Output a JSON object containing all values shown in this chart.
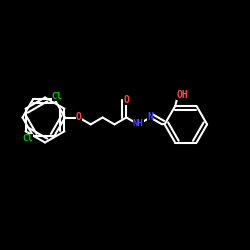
{
  "background_color": "#000000",
  "bond_color": "#ffffff",
  "atom_colors": {
    "O": "#ff4444",
    "N": "#4444ff",
    "Cl": "#00cc00",
    "H": "#ffffff",
    "C": "#ffffff"
  },
  "font_size": 7,
  "linewidth": 1.5,
  "figsize": [
    2.5,
    2.5
  ],
  "dpi": 100
}
